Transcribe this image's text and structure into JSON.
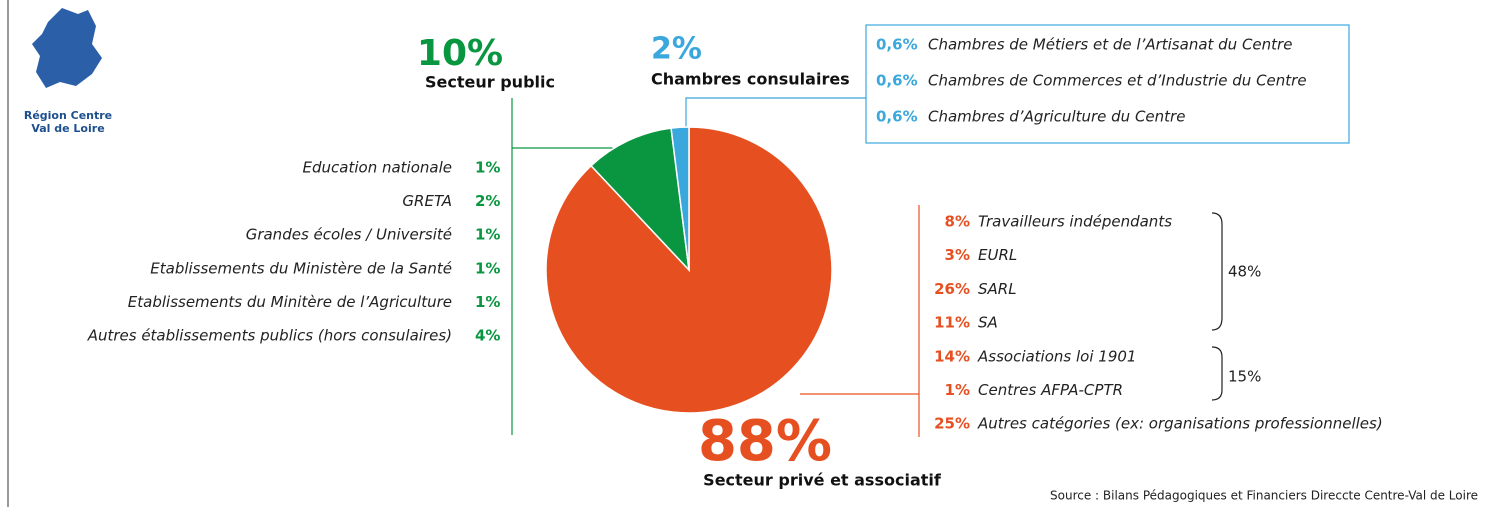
{
  "chart_data": {
    "type": "pie",
    "categories": [
      "Secteur privé et associatif",
      "Secteur public",
      "Chambres consulaires"
    ],
    "values": [
      88,
      10,
      2
    ],
    "value_labels": [
      "88%",
      "10%",
      "2%"
    ],
    "colors": [
      "#e65021",
      "#0a9640",
      "#3aa8dc"
    ]
  },
  "region": [
    "Région Centre",
    "Val de Loire"
  ],
  "public_items": [
    {
      "label": "Education nationale",
      "share": "1%"
    },
    {
      "label": "GRETA",
      "share": "2%"
    },
    {
      "label": "Grandes écoles / Université",
      "share": "1%"
    },
    {
      "label": "Etablissements du Ministère de la Santé",
      "share": "1%"
    },
    {
      "label": "Etablissements du Minitère de l’Agriculture",
      "share": "1%"
    },
    {
      "label": "Autres établissements publics (hors consulaires)",
      "share": "4%"
    }
  ],
  "consular_items": [
    {
      "label": "Chambres de Métiers et de l’Artisanat du Centre",
      "share": "0,6%"
    },
    {
      "label": "Chambres de Commerces et d’Industrie du Centre",
      "share": "0,6%"
    },
    {
      "label": "Chambres d’Agriculture du Centre",
      "share": "0,6%"
    }
  ],
  "private_items": [
    {
      "label": "Travailleurs indépendants",
      "share": "8%"
    },
    {
      "label": "EURL",
      "share": "3%"
    },
    {
      "label": "SARL",
      "share": "26%"
    },
    {
      "label": "SA",
      "share": "11%"
    },
    {
      "label": "Associations loi 1901",
      "share": "14%"
    },
    {
      "label": "Centres AFPA-CPTR",
      "share": "1%"
    },
    {
      "label": "Autres catégories (ex: organisations professionnelles)",
      "share": "25%"
    }
  ],
  "private_groups": [
    "48%",
    "15%"
  ],
  "source": "Source : Bilans Pédagogiques et Financiers Direccte Centre-Val de Loire"
}
